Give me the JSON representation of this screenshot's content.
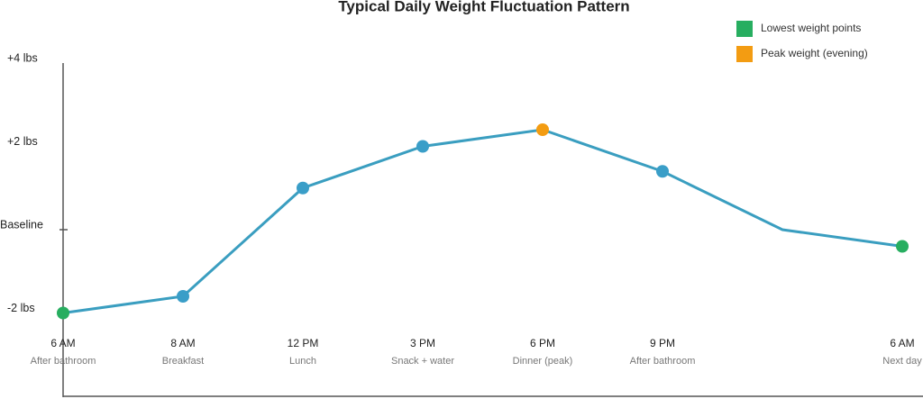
{
  "chart_data": {
    "type": "line",
    "title": "Typical Daily Weight Fluctuation Pattern",
    "categories": [
      "6 AM",
      "8 AM",
      "12 PM",
      "3 PM",
      "6 PM",
      "9 PM",
      null,
      "6 AM"
    ],
    "sublabels": [
      "After bathroom",
      "Breakfast",
      "Lunch",
      "Snack + water",
      "Dinner (peak)",
      "After bathroom",
      null,
      "Next day"
    ],
    "series": [
      {
        "color": "#3a9ec0",
        "values": [
          -2.0,
          -1.6,
          1.0,
          2.0,
          2.4,
          1.4,
          0,
          -0.4
        ],
        "marker_colors": [
          "#27ae60",
          "#3a9ec8",
          "#3a9ec8",
          "#3a9ec8",
          "#f39c12",
          "#3a9ec8",
          null,
          "#27ae60"
        ]
      }
    ],
    "ylim": [
      -4,
      4
    ],
    "yticks": [
      {
        "value": 4,
        "label": "+4 lbs"
      },
      {
        "value": 2,
        "label": "+2 lbs"
      },
      {
        "value": 0,
        "label": "Baseline"
      },
      {
        "value": -2,
        "label": "-2 lbs"
      }
    ],
    "legend": [
      {
        "label": "Lowest weight points",
        "color": "#27ae60"
      },
      {
        "label": "Peak weight (evening)",
        "color": "#f39c12"
      }
    ],
    "legend_position": "upper right"
  }
}
